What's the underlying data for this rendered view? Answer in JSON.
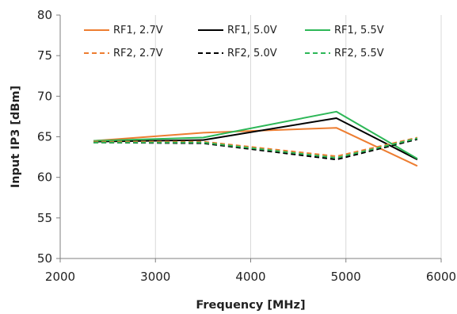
{
  "chart_data": {
    "type": "line",
    "xlabel": "Frequency [MHz]",
    "ylabel": "Input IP3 [dBm]",
    "xlim": [
      2000,
      6000
    ],
    "ylim": [
      50,
      80
    ],
    "xticks": [
      2000,
      3000,
      4000,
      5000,
      6000
    ],
    "yticks": [
      50,
      55,
      60,
      65,
      70,
      75,
      80
    ],
    "grid": "vertical",
    "legend_position": "top",
    "series": [
      {
        "name": "RF1, 2.7V",
        "color": "#ED7D31",
        "dash": "solid",
        "x": [
          2350,
          3500,
          4900,
          5750
        ],
        "y": [
          64.5,
          65.5,
          66.1,
          61.4
        ]
      },
      {
        "name": "RF1, 5.0V",
        "color": "#000000",
        "dash": "solid",
        "x": [
          2350,
          3500,
          4900,
          5750
        ],
        "y": [
          64.4,
          64.6,
          67.3,
          62.2
        ]
      },
      {
        "name": "RF1, 5.5V",
        "color": "#2DB757",
        "dash": "solid",
        "x": [
          2350,
          3500,
          4900,
          5750
        ],
        "y": [
          64.5,
          64.9,
          68.1,
          62.3
        ]
      },
      {
        "name": "RF2, 2.7V",
        "color": "#ED7D31",
        "dash": "dashed",
        "x": [
          2350,
          3500,
          4900,
          5750
        ],
        "y": [
          64.4,
          64.4,
          62.6,
          64.9
        ]
      },
      {
        "name": "RF2, 5.0V",
        "color": "#000000",
        "dash": "dashed",
        "x": [
          2350,
          3500,
          4900,
          5750
        ],
        "y": [
          64.3,
          64.2,
          62.2,
          64.7
        ]
      },
      {
        "name": "RF2, 5.5V",
        "color": "#2DB757",
        "dash": "dashed",
        "x": [
          2350,
          3500,
          4900,
          5750
        ],
        "y": [
          64.3,
          64.3,
          62.4,
          64.8
        ]
      }
    ]
  }
}
